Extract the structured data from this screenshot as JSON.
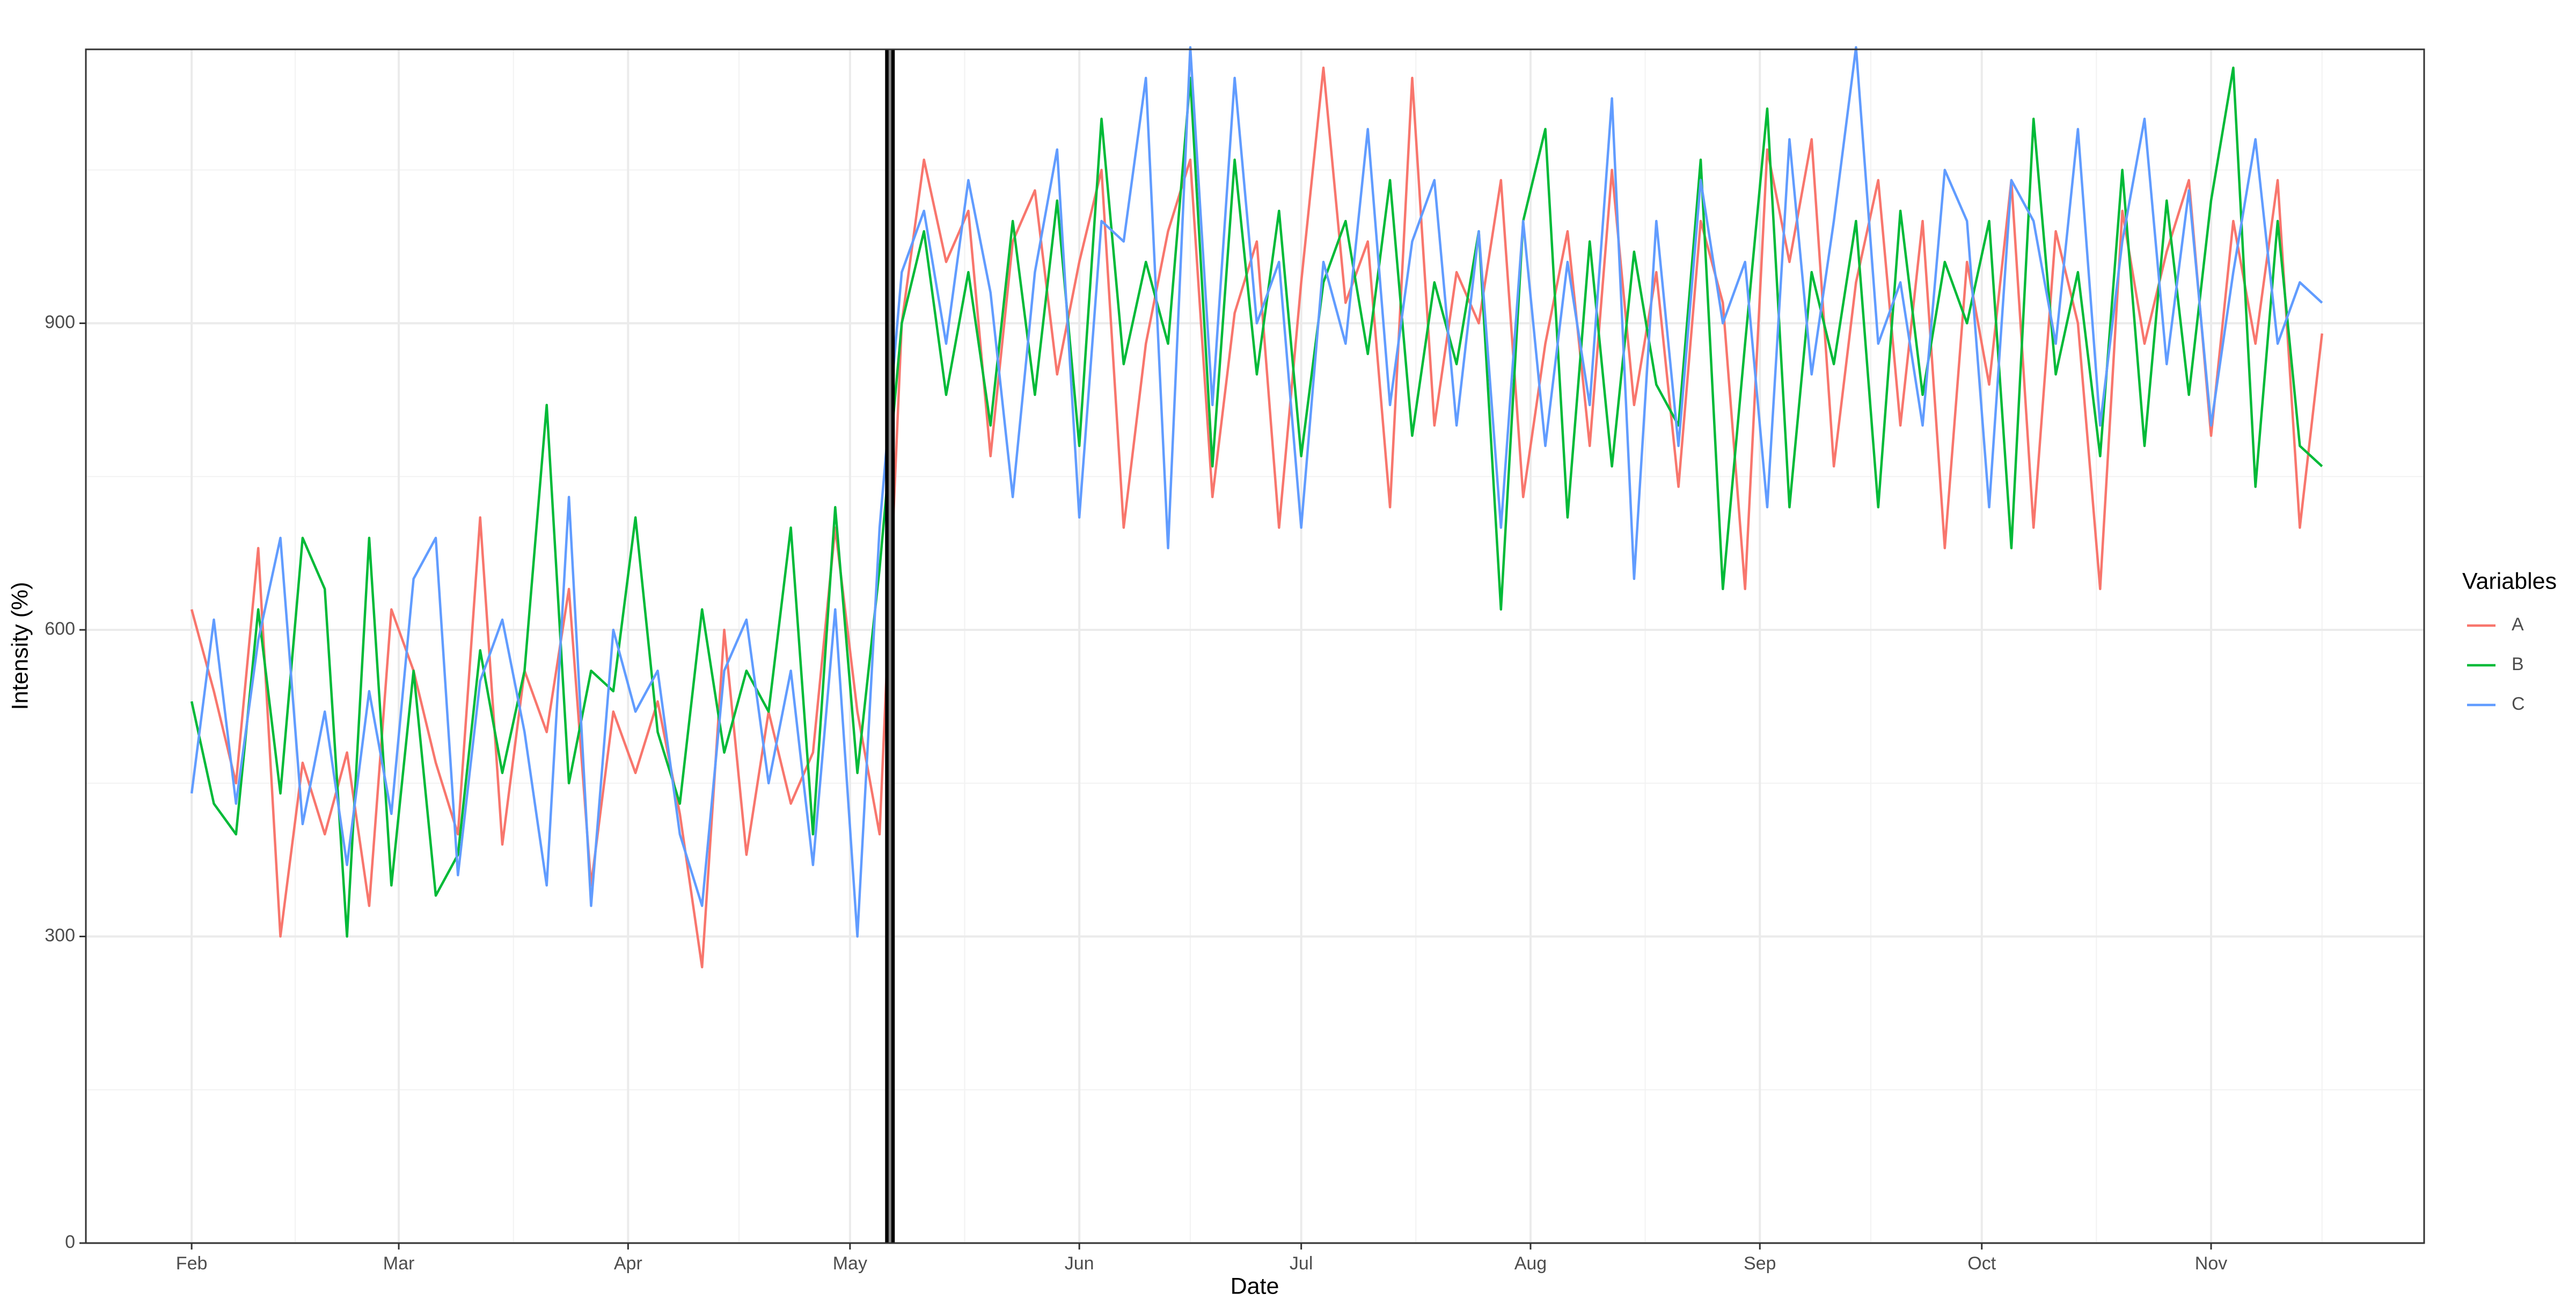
{
  "chart_data": {
    "type": "line",
    "x_label": "Date",
    "y_label": "Intensity (%)",
    "legend_title": "Variables",
    "x": [
      0,
      3,
      6,
      9,
      12,
      15,
      18,
      21,
      24,
      27,
      30,
      33,
      36,
      39,
      42,
      45,
      48,
      51,
      54,
      57,
      60,
      63,
      66,
      69,
      72,
      75,
      78,
      81,
      84,
      87,
      90,
      93,
      96,
      99,
      102,
      105,
      108,
      111,
      114,
      117,
      120,
      123,
      126,
      129,
      132,
      135,
      138,
      141,
      144,
      147,
      150,
      153,
      156,
      159,
      162,
      165,
      168,
      171,
      174,
      177,
      180,
      183,
      186,
      189,
      192,
      195,
      198,
      201,
      204,
      207,
      210,
      213,
      216,
      219,
      222,
      225,
      228,
      231,
      234,
      237,
      240,
      243,
      246,
      249,
      252,
      255,
      258,
      261,
      264,
      267,
      270,
      273,
      276,
      279,
      282,
      285,
      288
    ],
    "series": [
      {
        "name": "A",
        "color": "#F8766D",
        "values": [
          620,
          540,
          450,
          680,
          300,
          470,
          400,
          480,
          330,
          620,
          560,
          470,
          400,
          710,
          390,
          560,
          500,
          640,
          350,
          520,
          460,
          530,
          420,
          270,
          600,
          380,
          520,
          430,
          480,
          700,
          520,
          400,
          900,
          1060,
          960,
          1010,
          770,
          980,
          1030,
          850,
          960,
          1050,
          700,
          880,
          990,
          1060,
          730,
          910,
          980,
          700,
          940,
          1150,
          920,
          980,
          720,
          1140,
          800,
          950,
          900,
          1040,
          730,
          880,
          990,
          780,
          1050,
          820,
          950,
          740,
          1000,
          920,
          640,
          1070,
          960,
          1080,
          760,
          940,
          1040,
          800,
          1000,
          680,
          960,
          840,
          1040,
          700,
          990,
          900,
          640,
          1010,
          880,
          970,
          1040,
          790,
          1000,
          880,
          1040,
          700,
          890
        ]
      },
      {
        "name": "B",
        "color": "#00BA38",
        "values": [
          530,
          430,
          400,
          620,
          440,
          690,
          640,
          300,
          690,
          350,
          560,
          340,
          380,
          580,
          460,
          560,
          820,
          450,
          560,
          540,
          710,
          500,
          430,
          620,
          480,
          560,
          520,
          700,
          400,
          720,
          460,
          660,
          900,
          990,
          830,
          950,
          800,
          1000,
          830,
          1020,
          780,
          1100,
          860,
          960,
          880,
          1140,
          760,
          1060,
          850,
          1010,
          770,
          940,
          1000,
          870,
          1040,
          790,
          940,
          860,
          990,
          620,
          1000,
          1090,
          710,
          980,
          760,
          970,
          840,
          800,
          1060,
          640,
          880,
          1110,
          720,
          950,
          860,
          1000,
          720,
          1010,
          830,
          960,
          900,
          1000,
          680,
          1100,
          850,
          950,
          770,
          1050,
          780,
          1020,
          830,
          1020,
          1150,
          740,
          1000,
          780,
          760
        ]
      },
      {
        "name": "C",
        "color": "#619CFF",
        "values": [
          440,
          610,
          430,
          590,
          690,
          410,
          520,
          370,
          540,
          420,
          650,
          690,
          360,
          550,
          610,
          500,
          350,
          730,
          330,
          600,
          520,
          560,
          400,
          330,
          560,
          610,
          450,
          560,
          370,
          620,
          300,
          700,
          950,
          1010,
          880,
          1040,
          930,
          730,
          950,
          1070,
          710,
          1000,
          980,
          1140,
          680,
          1170,
          820,
          1140,
          900,
          960,
          700,
          960,
          880,
          1090,
          820,
          980,
          1040,
          800,
          990,
          700,
          1000,
          780,
          960,
          820,
          1120,
          650,
          1000,
          780,
          1040,
          900,
          960,
          720,
          1080,
          850,
          1000,
          1170,
          880,
          940,
          800,
          1050,
          1000,
          720,
          1040,
          1000,
          880,
          1090,
          800,
          980,
          1100,
          860,
          1030,
          800,
          950,
          1080,
          880,
          940,
          920
        ]
      }
    ],
    "xlim": [
      -14.3,
      301.8
    ],
    "xticks": [
      {
        "value": 0,
        "label": "Feb"
      },
      {
        "value": 28,
        "label": "Mar"
      },
      {
        "value": 59,
        "label": "Apr"
      },
      {
        "value": 89,
        "label": "May"
      },
      {
        "value": 120,
        "label": "Jun"
      },
      {
        "value": 150,
        "label": "Jul"
      },
      {
        "value": 181,
        "label": "Aug"
      },
      {
        "value": 212,
        "label": "Sep"
      },
      {
        "value": 242,
        "label": "Oct"
      },
      {
        "value": 273,
        "label": "Nov"
      }
    ],
    "xminor": [
      14,
      43.5,
      74,
      104.5,
      135,
      165.5,
      196.5,
      227,
      257.5,
      288
    ],
    "ylim": [
      0,
      1168
    ],
    "yticks": [
      0,
      300,
      600,
      900
    ],
    "yminor": [
      150,
      450,
      750,
      1050
    ],
    "vline": 94.4,
    "grid": true
  }
}
